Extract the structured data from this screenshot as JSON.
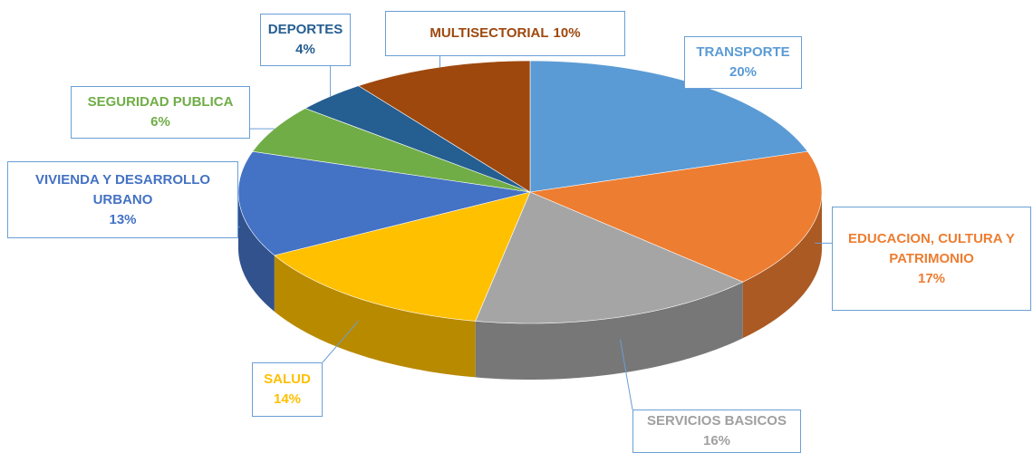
{
  "chart_data": {
    "type": "pie",
    "categories": [
      "TRANSPORTE",
      "EDUCACION, CULTURA Y PATRIMONIO",
      "SERVICIOS BASICOS",
      "SALUD",
      "VIVIENDA Y DESARROLLO URBANO",
      "SEGURIDAD PUBLICA",
      "DEPORTES",
      "MULTISECTORIAL"
    ],
    "values": [
      20,
      17,
      16,
      14,
      13,
      6,
      4,
      10
    ],
    "value_labels": [
      "20%",
      "17%",
      "16%",
      "14%",
      "13%",
      "6%",
      "4%",
      "10%"
    ],
    "colors": [
      "#5b9bd5",
      "#ed7d31",
      "#a5a5a5",
      "#ffc000",
      "#4472c4",
      "#70ad47",
      "#255e91",
      "#9e480e"
    ]
  }
}
